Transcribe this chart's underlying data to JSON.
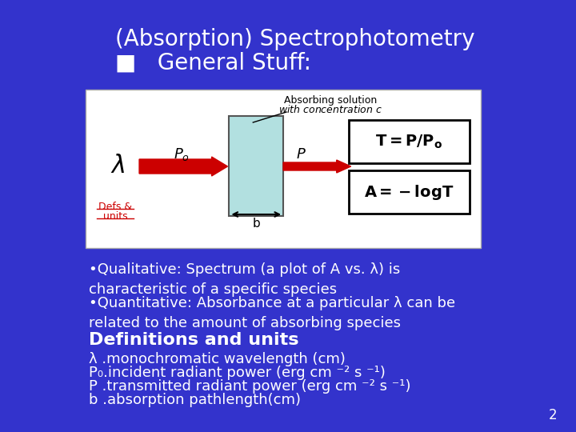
{
  "bg_color": "#3333cc",
  "title_line1": "(Absorption) Spectrophotometry",
  "title_line2": "■   General Stuff:",
  "title_color": "#ffffff",
  "title_fontsize": 20,
  "bullet_color": "#ffffff",
  "bullet_fontsize": 13,
  "bullet1": "•Qualitative: Spectrum (a plot of A vs. λ) is\ncharacteristic of a specific species",
  "bullet2": "•Quantitative: Absorbance at a particular λ can be\nrelated to the amount of absorbing species",
  "def_title": "Definitions and units",
  "def1": "λ .monochromatic wavelength (cm)",
  "def2": "P₀.incident radiant power (erg cm ⁻² s ⁻¹)",
  "def3": "P .transmitted radiant power (erg cm ⁻² s ⁻¹)",
  "def4": "b .absorption pathlength(cm)",
  "page_num": "2",
  "diagram_bg": "#ffffff",
  "diagram_box_color": "#b2e0e0",
  "arrow_color": "#cc0000",
  "defs_units_color": "#cc0000",
  "formula_color": "#000000"
}
